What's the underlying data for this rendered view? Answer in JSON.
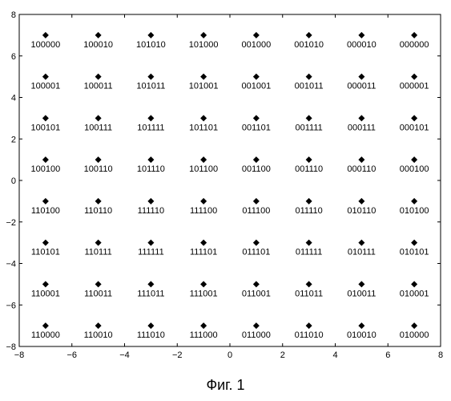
{
  "caption": "Фиг. 1",
  "chart_data": {
    "type": "scatter",
    "xlim": [
      -8,
      8
    ],
    "ylim": [
      -8,
      8
    ],
    "xticks": [
      -8,
      -6,
      -4,
      -2,
      0,
      2,
      4,
      6,
      8
    ],
    "yticks": [
      -8,
      -6,
      -4,
      -2,
      0,
      2,
      4,
      6,
      8
    ],
    "grid": false,
    "marker": "diamond",
    "marker_color": "#000000",
    "x": [
      -7,
      -5,
      -3,
      -1,
      1,
      3,
      5,
      7
    ],
    "y": [
      7,
      5,
      3,
      1,
      -1,
      -3,
      -5,
      -7
    ],
    "labels": [
      [
        "100000",
        "100010",
        "101010",
        "101000",
        "001000",
        "001010",
        "000010",
        "000000"
      ],
      [
        "100001",
        "100011",
        "101011",
        "101001",
        "001001",
        "001011",
        "000011",
        "000001"
      ],
      [
        "100101",
        "100111",
        "101111",
        "101101",
        "001101",
        "001111",
        "000111",
        "000101"
      ],
      [
        "100100",
        "100110",
        "101110",
        "101100",
        "001100",
        "001110",
        "000110",
        "000100"
      ],
      [
        "110100",
        "110110",
        "111110",
        "111100",
        "011100",
        "011110",
        "010110",
        "010100"
      ],
      [
        "110101",
        "110111",
        "111111",
        "111101",
        "011101",
        "011111",
        "010111",
        "010101"
      ],
      [
        "110001",
        "110011",
        "111011",
        "111001",
        "011001",
        "011011",
        "010011",
        "010001"
      ],
      [
        "110000",
        "110010",
        "111010",
        "111000",
        "011000",
        "011010",
        "010010",
        "010000"
      ]
    ]
  }
}
